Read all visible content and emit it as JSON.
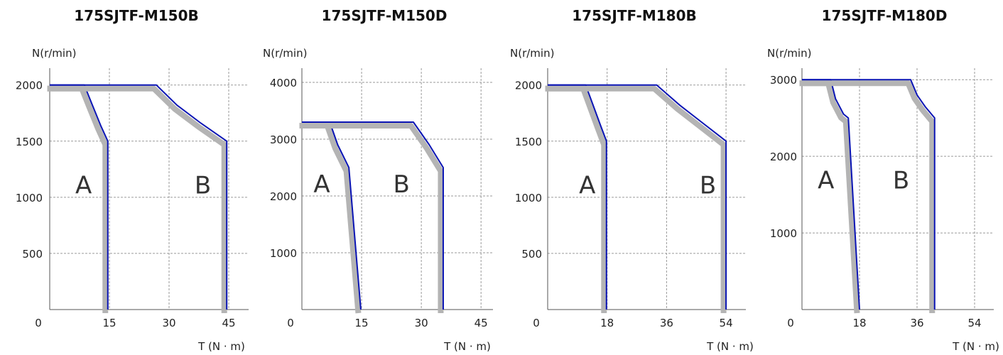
{
  "colors": {
    "background": "#ffffff",
    "limit_line": "#0a14b4",
    "band": "#b4b4b4",
    "grid": "#9a9a9a",
    "axis": "#555555",
    "text": "#222222"
  },
  "chart_data": [
    {
      "type": "line",
      "title": "175SJTF-M150B",
      "ylabel": "N(r/min)",
      "xlabel": "T (N · m)",
      "xlim": [
        0,
        50
      ],
      "ylim": [
        0,
        2150
      ],
      "x_ticks": [
        0,
        15,
        30,
        45
      ],
      "x_tick_labels": [
        "0",
        "15",
        "30",
        "45"
      ],
      "y_ticks": [
        500,
        1000,
        1500,
        2000
      ],
      "y_tick_labels": [
        "500",
        "1000",
        "1500",
        "2000"
      ],
      "grid": true,
      "regions": [
        {
          "label": "A",
          "x": 8.5,
          "y": 1110
        },
        {
          "label": "B",
          "x": 38.5,
          "y": 1110
        }
      ],
      "series": [
        {
          "x": [
            0,
            8.7,
            10.5,
            12.8,
            14.6,
            14.6
          ],
          "y": [
            2000,
            2000,
            1840,
            1640,
            1500,
            0
          ]
        },
        {
          "x": [
            0,
            26.8,
            32,
            38,
            44.5,
            44.5
          ],
          "y": [
            2000,
            2000,
            1820,
            1660,
            1500,
            0
          ]
        }
      ]
    },
    {
      "type": "line",
      "title": "175SJTF-M150D",
      "ylabel": "N(r/min)",
      "xlabel": "T (N · m)",
      "xlim": [
        0,
        48
      ],
      "ylim": [
        0,
        4250
      ],
      "x_ticks": [
        0,
        15,
        30,
        45
      ],
      "x_tick_labels": [
        "0",
        "15",
        "30",
        "45"
      ],
      "y_ticks": [
        1000,
        2000,
        3000,
        4000
      ],
      "y_tick_labels": [
        "1000",
        "2000",
        "3000",
        "4000"
      ],
      "grid": true,
      "regions": [
        {
          "label": "A",
          "x": 5,
          "y": 2210
        },
        {
          "label": "B",
          "x": 25,
          "y": 2210
        }
      ],
      "series": [
        {
          "x": [
            0,
            7,
            9,
            11.8,
            14.8
          ],
          "y": [
            3300,
            3300,
            2900,
            2500,
            0
          ]
        },
        {
          "x": [
            0,
            28,
            32,
            35.5,
            35.5
          ],
          "y": [
            3300,
            3300,
            2900,
            2500,
            0
          ]
        }
      ]
    },
    {
      "type": "line",
      "title": "175SJTF-M180B",
      "ylabel": "N(r/min)",
      "xlabel": "T (N · m)",
      "xlim": [
        0,
        60
      ],
      "ylim": [
        0,
        2150
      ],
      "x_ticks": [
        0,
        18,
        36,
        54
      ],
      "x_tick_labels": [
        "0",
        "18",
        "36",
        "54"
      ],
      "y_ticks": [
        500,
        1000,
        1500,
        2000
      ],
      "y_tick_labels": [
        "500",
        "1000",
        "1500",
        "2000"
      ],
      "grid": true,
      "regions": [
        {
          "label": "A",
          "x": 12,
          "y": 1110
        },
        {
          "label": "B",
          "x": 48.5,
          "y": 1110
        }
      ],
      "series": [
        {
          "x": [
            0,
            11.5,
            13.5,
            16,
            17.8,
            17.8
          ],
          "y": [
            2000,
            2000,
            1840,
            1640,
            1500,
            0
          ]
        },
        {
          "x": [
            0,
            33,
            40,
            47,
            54,
            54
          ],
          "y": [
            2000,
            2000,
            1820,
            1660,
            1500,
            0
          ]
        }
      ]
    },
    {
      "type": "line",
      "title": "175SJTF-M180D",
      "ylabel": "N(r/min)",
      "xlabel": "T (N · m)",
      "xlim": [
        0,
        60
      ],
      "ylim": [
        0,
        3150
      ],
      "x_ticks": [
        0,
        18,
        36,
        54
      ],
      "x_tick_labels": [
        "0",
        "18",
        "36",
        "54"
      ],
      "y_ticks": [
        1000,
        2000,
        3000
      ],
      "y_tick_labels": [
        "1000",
        "2000",
        "3000"
      ],
      "grid": true,
      "regions": [
        {
          "label": "A",
          "x": 7.5,
          "y": 1690
        },
        {
          "label": "B",
          "x": 31,
          "y": 1690
        }
      ],
      "series": [
        {
          "x": [
            0,
            9,
            10.5,
            13,
            14.5,
            18
          ],
          "y": [
            3000,
            3000,
            2750,
            2550,
            2500,
            0
          ]
        },
        {
          "x": [
            0,
            34,
            36,
            38.5,
            41.5,
            41.5
          ],
          "y": [
            3000,
            3000,
            2800,
            2650,
            2500,
            0
          ]
        }
      ]
    }
  ]
}
